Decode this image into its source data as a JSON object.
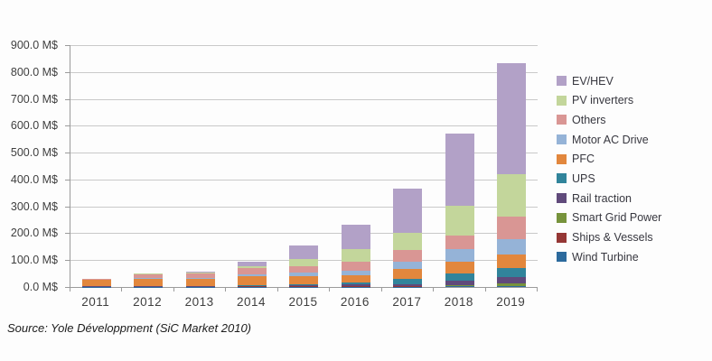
{
  "source_note": "Source: Yole Développment (SiC Market 2010)",
  "colors": {
    "background": "#fdfdfd",
    "grid": "#c9c9c9",
    "axis_line": "#9b9b9b",
    "axis_text": "#3f3f3f",
    "legend_text": "#37373f"
  },
  "chart_data": {
    "type": "bar",
    "stacked": true,
    "title": "",
    "xlabel": "",
    "ylabel": "",
    "unit": "M$",
    "ylim": [
      0,
      900
    ],
    "ytick_step": 100,
    "ytick_labels": [
      "0.0 M$",
      "100.0 M$",
      "200.0 M$",
      "300.0 M$",
      "400.0 M$",
      "500.0 M$",
      "600.0 M$",
      "700.0 M$",
      "800.0 M$",
      "900.0 M$"
    ],
    "grid": true,
    "legend_position": "right",
    "categories": [
      "2011",
      "2012",
      "2013",
      "2014",
      "2015",
      "2016",
      "2017",
      "2018",
      "2019"
    ],
    "series": [
      {
        "name": "EV/HEV",
        "color": "#b2a1c7",
        "values": [
          0,
          1,
          3,
          16,
          52,
          90,
          165,
          270,
          412
        ]
      },
      {
        "name": "PV inverters",
        "color": "#c3d69b",
        "values": [
          0,
          2,
          3,
          8,
          24,
          46,
          62,
          112,
          160
        ]
      },
      {
        "name": "Others",
        "color": "#d99694",
        "values": [
          4,
          14,
          17,
          23,
          24,
          34,
          45,
          50,
          84
        ]
      },
      {
        "name": "Motor AC Drive",
        "color": "#95b3d7",
        "values": [
          1,
          3,
          4,
          7,
          13,
          18,
          27,
          46,
          55
        ]
      },
      {
        "name": "PFC",
        "color": "#e2873d",
        "values": [
          24,
          26,
          25,
          33,
          31,
          27,
          36,
          42,
          50
        ]
      },
      {
        "name": "UPS",
        "color": "#31849b",
        "values": [
          1,
          2,
          2.5,
          3.5,
          5,
          7,
          21,
          29,
          36
        ]
      },
      {
        "name": "Rail traction",
        "color": "#604a7b",
        "values": [
          0.5,
          0.5,
          1,
          1.5,
          2.5,
          4,
          5,
          15,
          24
        ]
      },
      {
        "name": "Smart Grid Power",
        "color": "#77933c",
        "values": [
          0.5,
          0.5,
          0.5,
          1,
          1.5,
          2,
          2,
          4,
          8
        ]
      },
      {
        "name": "Ships & Vessels",
        "color": "#953735",
        "values": [
          0.5,
          0.5,
          0.5,
          1,
          1,
          1.5,
          1.5,
          2,
          2
        ]
      },
      {
        "name": "Wind Turbine",
        "color": "#2c6a9d",
        "values": [
          0.5,
          0.5,
          0.5,
          1,
          1,
          1,
          1.5,
          2,
          2
        ]
      }
    ]
  }
}
